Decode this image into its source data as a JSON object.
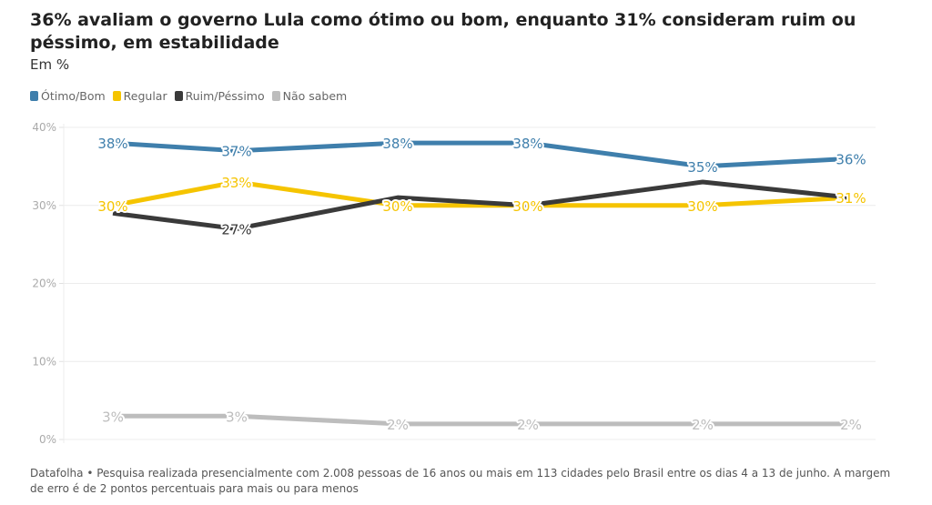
{
  "header": {
    "title": "36% avaliam o governo Lula como ótimo ou bom, enquanto 31% consideram ruim ou péssimo, em estabilidade",
    "subtitle": "Em %"
  },
  "footer": {
    "note": "Datafolha • Pesquisa realizada presencialmente com 2.008 pessoas de 16 anos ou mais em 113 cidades pelo Brasil entre os dias 4 a 13 de junho. A margem de erro é de 2 pontos percentuais para mais ou para menos"
  },
  "chart_data": {
    "type": "line",
    "title": "36% avaliam o governo Lula como ótimo ou bom, enquanto 31% consideram ruim ou péssimo, em estabilidade",
    "subtitle": "Em %",
    "xlabel": "",
    "ylabel": "",
    "x": [
      "1",
      "2",
      "3",
      "4",
      "5",
      "6"
    ],
    "ylim": [
      0,
      40
    ],
    "yticks": [
      0,
      10,
      20,
      30,
      40
    ],
    "ytick_labels": [
      "0%",
      "10%",
      "20%",
      "30%",
      "40%"
    ],
    "grid": true,
    "legend_position": "top-left",
    "series": [
      {
        "name": "Ótimo/Bom",
        "color": "#3f7fac",
        "values": [
          38,
          37,
          38,
          38,
          35,
          36
        ],
        "labels": [
          "38%",
          "37%",
          "38%",
          "38%",
          "35%",
          "36%"
        ]
      },
      {
        "name": "Regular",
        "color": "#f5c400",
        "values": [
          30,
          33,
          30,
          30,
          30,
          31
        ],
        "labels": [
          "30%",
          "33%",
          "30%",
          "30%",
          "30%",
          "31%"
        ]
      },
      {
        "name": "Ruim/Péssimo",
        "color": "#3a3a3a",
        "values": [
          29,
          27,
          31,
          30,
          33,
          31
        ],
        "labels": [
          "",
          "27%",
          "",
          "",
          "",
          ""
        ]
      },
      {
        "name": "Não sabem",
        "color": "#bdbdbd",
        "values": [
          3,
          3,
          2,
          2,
          2,
          2
        ],
        "labels": [
          "3%",
          "3%",
          "2%",
          "2%",
          "2%",
          "2%"
        ]
      }
    ]
  }
}
